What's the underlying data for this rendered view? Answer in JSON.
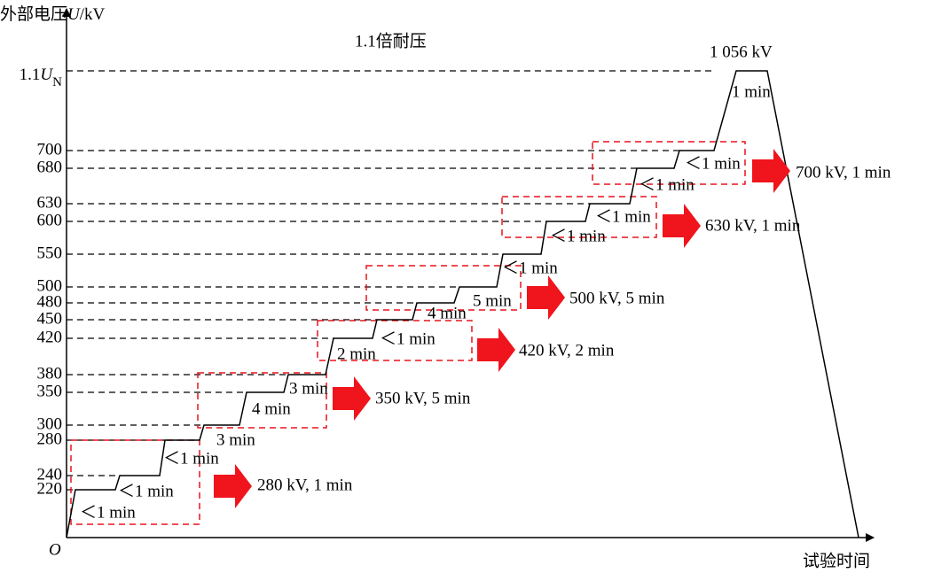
{
  "title": "1.1倍耐压",
  "peak_label": "1 056 kV",
  "axis": {
    "y_title": {
      "main": "外部电压",
      "var": "U",
      "unit": "/kV"
    },
    "x_title": "试验时间",
    "origin": "O"
  },
  "rated_tick": {
    "prefix": "1.1",
    "var": "U",
    "sub": "N"
  },
  "y_ticks": [
    "700",
    "680",
    "630",
    "600",
    "550",
    "500",
    "480",
    "450",
    "420",
    "380",
    "350",
    "300",
    "280",
    "240",
    "220"
  ],
  "step_labels": [
    "＜1 min",
    "＜1 min",
    "＜1 min",
    "3 min",
    "4 min",
    "3 min",
    "2 min",
    "＜1 min",
    "4 min",
    "5 min",
    "＜1 min",
    "＜1 min",
    "＜1 min",
    "＜1 min",
    "＜1 min",
    "1 min"
  ],
  "callouts": [
    "280 kV, 1 min",
    "350 kV, 5 min",
    "420 kV, 2 min",
    "500 kV, 5 min",
    "630 kV, 1 min",
    "700 kV, 1 min"
  ]
}
